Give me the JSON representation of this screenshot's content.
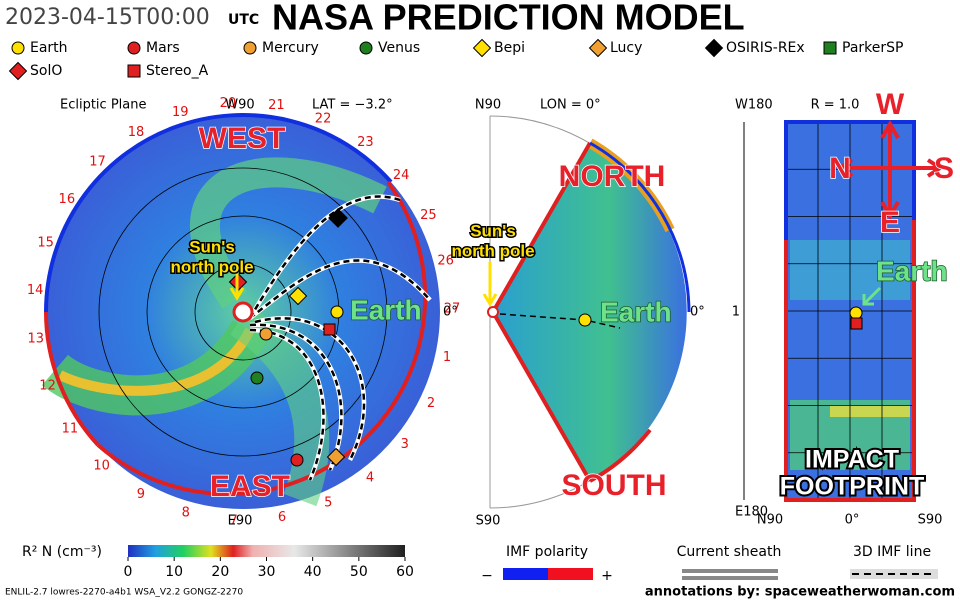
{
  "header": {
    "timestamp": "2023-04-15T00:00",
    "timezone": "UTC",
    "title": "NASA PREDICTION MODEL"
  },
  "legend": [
    "Earth",
    "Mars",
    "Mercury",
    "Venus",
    "Bepi",
    "Lucy",
    "OSIRIS-REx",
    "ParkerSP",
    "SolO",
    "Stereo_A"
  ],
  "ecliptic": {
    "title": "Ecliptic Plane",
    "top": "W90",
    "lat": "LAT = −3.2°",
    "bottom": "E90",
    "right": "0°",
    "sectors": [
      1,
      2,
      3,
      4,
      5,
      6,
      7,
      8,
      9,
      10,
      11,
      12,
      13,
      14,
      15,
      16,
      17,
      18,
      19,
      20,
      21,
      22,
      23,
      24,
      25,
      26,
      27
    ],
    "west": "WEST",
    "east": "EAST",
    "pole_1": "Sun's",
    "pole_2": "north pole",
    "earth": "Earth"
  },
  "meridional": {
    "top": "N90",
    "lon": "LON = 0°",
    "bottom": "S90",
    "right": "0°",
    "north": "NORTH",
    "south": "SOUTH",
    "pole_1": "Sun's",
    "pole_2": "north pole",
    "earth": "Earth"
  },
  "footprint": {
    "top": "W180",
    "radius": "R = 1.0",
    "bottom": "E180",
    "left": "1",
    "x_left": "N90",
    "x_mid": "0°",
    "x_right": "S90",
    "w": "W",
    "n": "N",
    "s": "S",
    "e": "E",
    "earth": "Earth",
    "impact_1": "IMPACT",
    "impact_2": "FOOTPRINT"
  },
  "colorbar": {
    "label": "R² N (cm⁻³)",
    "ticks": [
      0,
      10,
      20,
      30,
      40,
      50,
      60
    ]
  },
  "imf": {
    "label": "IMF polarity",
    "minus": "−",
    "plus": "+"
  },
  "sheath": "Current sheath",
  "imf_line": "3D IMF line",
  "footer": {
    "model": "ENLIL-2.7 lowres-2270-a4b1 WSA_V2.2 GONGZ-2270",
    "credit": "annotations by: spaceweatherwoman.com"
  }
}
